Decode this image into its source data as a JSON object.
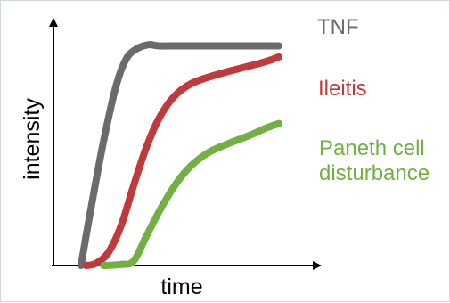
{
  "chart_data": {
    "type": "line",
    "xlabel": "time",
    "ylabel": "intensity",
    "x_ticks_shown": false,
    "y_ticks_shown": false,
    "grid": false,
    "legend": "labels placed at right of each curve",
    "xlim": [
      0,
      10
    ],
    "ylim": [
      0,
      10
    ],
    "series": [
      {
        "name": "TNF",
        "color": "#6b6b6b",
        "points": [
          [
            1.1,
            0
          ],
          [
            1.5,
            2.6
          ],
          [
            2.0,
            5.6
          ],
          [
            2.5,
            8.1
          ],
          [
            2.9,
            9.3
          ],
          [
            3.3,
            9.75
          ],
          [
            3.8,
            9.95
          ],
          [
            4.2,
            9.9
          ],
          [
            5.0,
            9.9
          ],
          [
            7.0,
            9.9
          ],
          [
            9.0,
            9.9
          ]
        ]
      },
      {
        "name": "Ileitis",
        "color": "#c0393b",
        "points": [
          [
            1.3,
            0
          ],
          [
            1.7,
            0.1
          ],
          [
            2.2,
            0.6
          ],
          [
            2.7,
            1.8
          ],
          [
            3.2,
            3.6
          ],
          [
            3.7,
            5.3
          ],
          [
            4.2,
            6.6
          ],
          [
            4.8,
            7.6
          ],
          [
            5.5,
            8.2
          ],
          [
            6.5,
            8.6
          ],
          [
            7.5,
            8.9
          ],
          [
            8.5,
            9.2
          ],
          [
            9.0,
            9.4
          ]
        ]
      },
      {
        "name": "Paneth cell\ndisturbance",
        "color": "#72b043",
        "points": [
          [
            2.0,
            0
          ],
          [
            2.7,
            0.05
          ],
          [
            3.2,
            0.2
          ],
          [
            3.7,
            1.3
          ],
          [
            4.3,
            2.6
          ],
          [
            4.9,
            3.7
          ],
          [
            5.5,
            4.5
          ],
          [
            6.2,
            5.1
          ],
          [
            7.0,
            5.5
          ],
          [
            7.8,
            5.85
          ],
          [
            8.5,
            6.2
          ],
          [
            9.0,
            6.4
          ]
        ]
      }
    ]
  }
}
